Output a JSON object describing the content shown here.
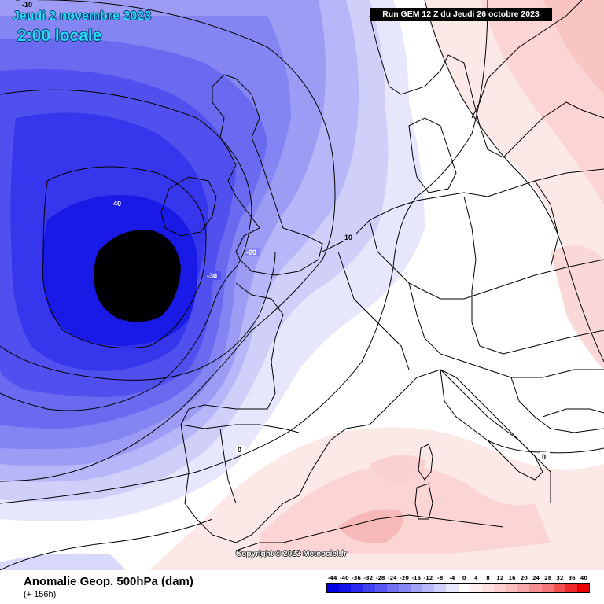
{
  "header": {
    "date": "Jeudi 2 novembre 2023",
    "time": "2:00 locale",
    "run": "Run GEM 12 Z du Jeudi 26 octobre 2023"
  },
  "map": {
    "contour_labels": [
      "-10",
      "-40",
      "-20",
      "-30",
      "-10",
      "0",
      "0"
    ],
    "copyright": "Copyright © 2023 Meteociel.fr"
  },
  "footer": {
    "title": "Anomalie Geop. 500hPa (dam)",
    "subtitle": "(+ 156h)"
  },
  "legend": {
    "ticks": [
      "-44",
      "-40",
      "-36",
      "-32",
      "-28",
      "-24",
      "-20",
      "-16",
      "-12",
      "-8",
      "-4",
      "0",
      "4",
      "8",
      "12",
      "16",
      "20",
      "24",
      "28",
      "32",
      "36",
      "40"
    ],
    "colors": [
      "#0000e0",
      "#1010ea",
      "#2828ee",
      "#4040f0",
      "#5858f0",
      "#7070f2",
      "#8888f4",
      "#a0a0f6",
      "#b8b8f8",
      "#d0d0fa",
      "#e8e8fd",
      "#ffffff",
      "#fff0f0",
      "#ffe0e0",
      "#fcd0d0",
      "#fac0c0",
      "#f8a8a8",
      "#f69090",
      "#f47878",
      "#f25050",
      "#ee2828",
      "#e80000"
    ]
  }
}
